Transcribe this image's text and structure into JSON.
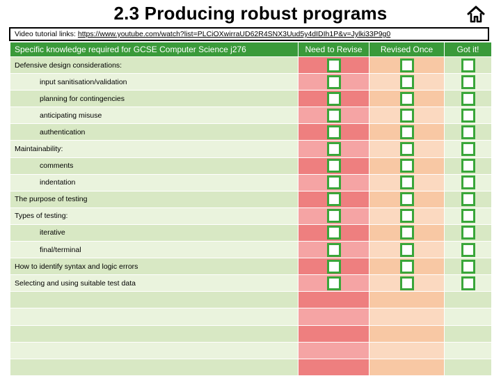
{
  "header": {
    "title": "2.3 Producing robust programs",
    "home_icon": "home-icon"
  },
  "video": {
    "label": "Video tutorial links: ",
    "url": "https://www.youtube.com/watch?list=PLCiOXwirraUD62R4SNX3Uud5y4dIDIh1P&v=Jylki33P9g0"
  },
  "table": {
    "headers": {
      "topic": "Specific knowledge required for GCSE Computer Science j276",
      "need": "Need to Revise",
      "revised": "Revised Once",
      "got": "Got it!"
    },
    "rows": [
      {
        "text": "Defensive design considerations:",
        "level": 0,
        "checkbox": true
      },
      {
        "text": "input sanitisation/validation",
        "level": 1,
        "checkbox": true
      },
      {
        "text": "planning for contingencies",
        "level": 1,
        "checkbox": true
      },
      {
        "text": "anticipating misuse",
        "level": 1,
        "checkbox": true
      },
      {
        "text": "authentication",
        "level": 1,
        "checkbox": true
      },
      {
        "text": "Maintainability:",
        "level": 0,
        "checkbox": true
      },
      {
        "text": "comments",
        "level": 1,
        "checkbox": true
      },
      {
        "text": "indentation",
        "level": 1,
        "checkbox": true
      },
      {
        "text": "The purpose of testing",
        "level": 0,
        "checkbox": true
      },
      {
        "text": "Types of testing:",
        "level": 0,
        "checkbox": true
      },
      {
        "text": "iterative",
        "level": 1,
        "checkbox": true
      },
      {
        "text": "final/terminal",
        "level": 1,
        "checkbox": true
      },
      {
        "text": "How to identify syntax and logic errors",
        "level": 0,
        "checkbox": true
      },
      {
        "text": "Selecting and using suitable test data",
        "level": 0,
        "checkbox": true
      },
      {
        "text": "",
        "level": 0,
        "checkbox": false
      },
      {
        "text": "",
        "level": 0,
        "checkbox": false
      },
      {
        "text": "",
        "level": 0,
        "checkbox": false
      },
      {
        "text": "",
        "level": 0,
        "checkbox": false
      },
      {
        "text": "",
        "level": 0,
        "checkbox": false
      }
    ]
  },
  "colors": {
    "header_green": "#3a9a3a",
    "need_red": "#ee7f7f",
    "revised_orange": "#f8c8a4",
    "got_green": "#d8e8c4",
    "checkbox_border": "#3aa63a"
  }
}
